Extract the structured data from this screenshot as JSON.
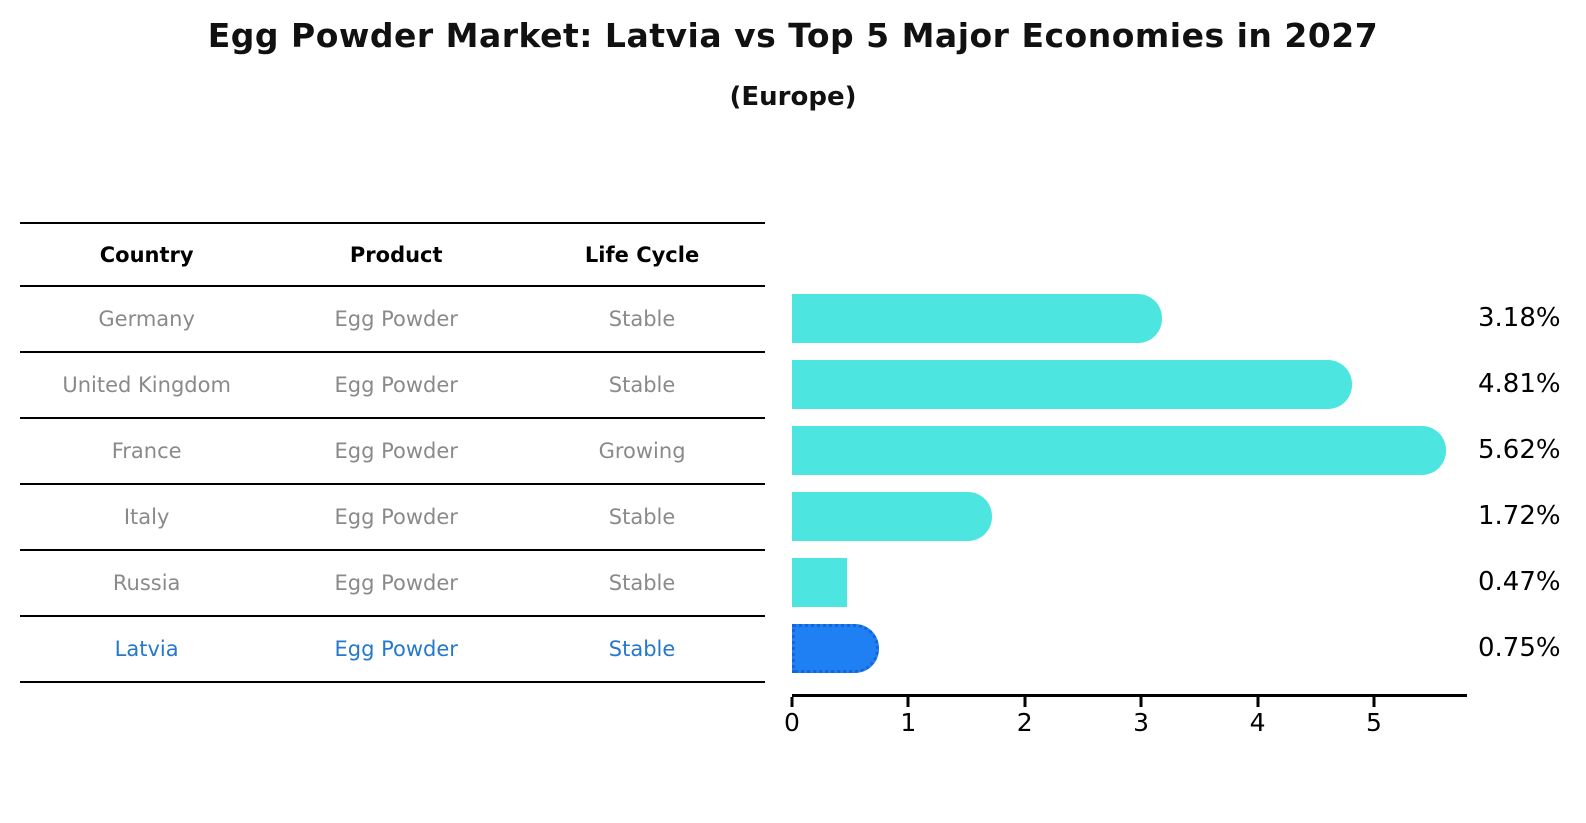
{
  "header": {
    "title": "Egg Powder Market: Latvia vs Top 5 Major Economies in 2027",
    "subtitle": "(Europe)"
  },
  "table": {
    "headers": [
      "Country",
      "Product",
      "Life Cycle"
    ],
    "rows": [
      {
        "country": "Germany",
        "product": "Egg Powder",
        "life_cycle": "Stable",
        "highlight": false
      },
      {
        "country": "United Kingdom",
        "product": "Egg Powder",
        "life_cycle": "Stable",
        "highlight": false
      },
      {
        "country": "France",
        "product": "Egg Powder",
        "life_cycle": "Growing",
        "highlight": false
      },
      {
        "country": "Italy",
        "product": "Egg Powder",
        "life_cycle": "Stable",
        "highlight": false
      },
      {
        "country": "Russia",
        "product": "Egg Powder",
        "life_cycle": "Stable",
        "highlight": false
      },
      {
        "country": "Latvia",
        "product": "Egg Powder",
        "life_cycle": "Stable",
        "highlight": true
      }
    ]
  },
  "chart_data": {
    "type": "bar",
    "orientation": "horizontal",
    "title": "Egg Powder Market: Latvia vs Top 5 Major Economies in 2027",
    "subtitle": "(Europe)",
    "categories": [
      "Germany",
      "United Kingdom",
      "France",
      "Italy",
      "Russia",
      "Latvia"
    ],
    "values": [
      3.18,
      4.81,
      5.62,
      1.72,
      0.47,
      0.75
    ],
    "value_labels": [
      "3.18%",
      "4.81%",
      "5.62%",
      "1.72%",
      "0.47%",
      "0.75%"
    ],
    "xticks": [
      "0",
      "1",
      "2",
      "3",
      "4",
      "5"
    ],
    "xlim": [
      0,
      5.8
    ],
    "xlabel": "",
    "ylabel": "",
    "grid": false,
    "legend": false,
    "bar_color": "#4DE5E0",
    "highlight_bar_color": "#1E80F2",
    "highlight_index": 5
  },
  "colors": {
    "row_text": "#8A8A8A",
    "highlight_text": "#2479CC",
    "line": "#000000",
    "background": "#FFFFFF"
  }
}
